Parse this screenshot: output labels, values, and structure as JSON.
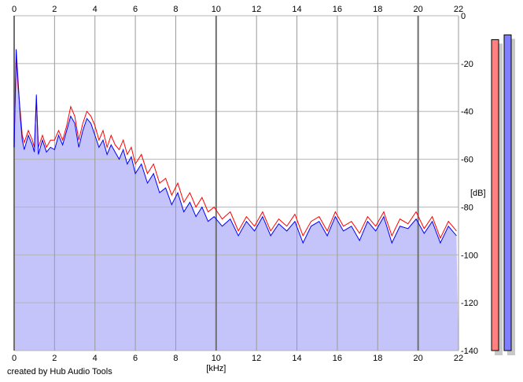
{
  "chart_data": {
    "type": "line",
    "xlabel": "[kHz]",
    "ylabel": "[dB]",
    "xlim": [
      0,
      22
    ],
    "ylim": [
      -140,
      0
    ],
    "xticks": [
      "0",
      "2",
      "4",
      "6",
      "8",
      "10",
      "12",
      "14",
      "16",
      "18",
      "20",
      "22"
    ],
    "yticks": [
      "0",
      "-20",
      "-40",
      "-60",
      "-80",
      "-100",
      "-120",
      "-140"
    ],
    "grid": true,
    "x": [
      0,
      0.1,
      0.2,
      0.3,
      0.4,
      0.5,
      0.7,
      0.9,
      1.0,
      1.1,
      1.2,
      1.4,
      1.6,
      1.8,
      2.0,
      2.2,
      2.4,
      2.6,
      2.8,
      3.0,
      3.2,
      3.4,
      3.6,
      3.8,
      4.0,
      4.2,
      4.4,
      4.6,
      4.8,
      5.0,
      5.2,
      5.4,
      5.6,
      5.8,
      6.0,
      6.3,
      6.6,
      6.9,
      7.2,
      7.5,
      7.8,
      8.1,
      8.4,
      8.7,
      9.0,
      9.3,
      9.6,
      9.9,
      10.3,
      10.7,
      11.1,
      11.5,
      11.9,
      12.3,
      12.7,
      13.1,
      13.5,
      13.9,
      14.3,
      14.7,
      15.1,
      15.5,
      15.9,
      16.3,
      16.7,
      17.1,
      17.5,
      17.9,
      18.3,
      18.7,
      19.1,
      19.5,
      19.9,
      20.3,
      20.7,
      21.1,
      21.5,
      21.9
    ],
    "series": [
      {
        "color": "#ff0000",
        "values": [
          -52,
          -18,
          -30,
          -40,
          -50,
          -53,
          -48,
          -52,
          -55,
          -35,
          -55,
          -50,
          -55,
          -52,
          -52,
          -48,
          -52,
          -46,
          -38,
          -42,
          -52,
          -45,
          -40,
          -42,
          -46,
          -52,
          -48,
          -55,
          -50,
          -54,
          -56,
          -52,
          -58,
          -55,
          -62,
          -58,
          -66,
          -62,
          -70,
          -68,
          -75,
          -70,
          -78,
          -74,
          -80,
          -76,
          -82,
          -80,
          -85,
          -82,
          -90,
          -84,
          -88,
          -82,
          -90,
          -85,
          -88,
          -83,
          -92,
          -86,
          -84,
          -90,
          -82,
          -88,
          -86,
          -91,
          -84,
          -88,
          -82,
          -92,
          -85,
          -87,
          -82,
          -89,
          -84,
          -93,
          -86,
          -90
        ]
      },
      {
        "color": "#0000ff",
        "values": [
          -55,
          -14,
          -28,
          -42,
          -52,
          -56,
          -50,
          -54,
          -57,
          -33,
          -58,
          -52,
          -57,
          -55,
          -56,
          -50,
          -54,
          -48,
          -42,
          -45,
          -55,
          -48,
          -43,
          -45,
          -50,
          -55,
          -52,
          -58,
          -54,
          -57,
          -60,
          -56,
          -62,
          -59,
          -66,
          -62,
          -70,
          -66,
          -74,
          -72,
          -79,
          -74,
          -82,
          -78,
          -84,
          -80,
          -86,
          -84,
          -88,
          -85,
          -92,
          -86,
          -90,
          -84,
          -92,
          -87,
          -90,
          -86,
          -95,
          -88,
          -86,
          -92,
          -84,
          -90,
          -88,
          -94,
          -86,
          -90,
          -84,
          -95,
          -88,
          -89,
          -85,
          -91,
          -86,
          -95,
          -88,
          -92
        ]
      }
    ],
    "fill_color": "#c4c4fa",
    "meters": {
      "scale": "dB",
      "levels": [
        {
          "color": "#ff8080",
          "value": -10
        },
        {
          "color": "#8080ff",
          "value": -8
        }
      ]
    }
  },
  "credit": "created by Hub Audio Tools"
}
